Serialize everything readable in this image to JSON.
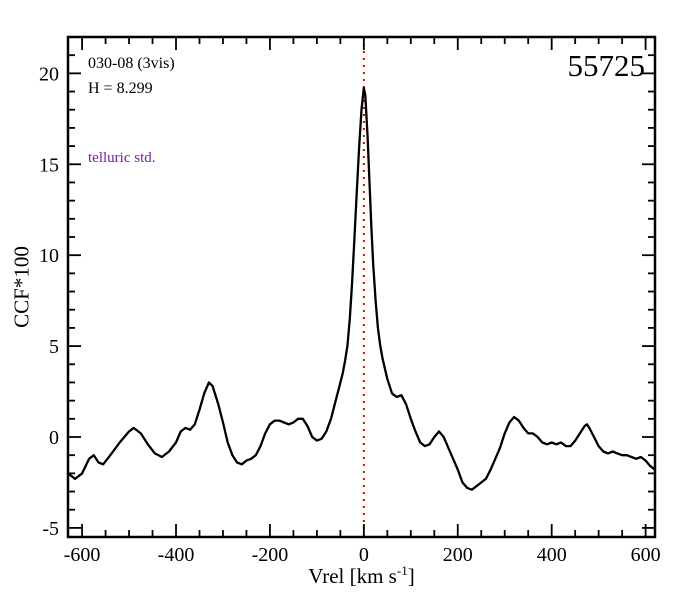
{
  "labels": {
    "obs_id": "030-08 (3vis)",
    "h_mag": "H = 8.299",
    "telluric": "telluric std.",
    "telluric_color": "#7b1fa2",
    "mjd": "55725"
  },
  "axes": {
    "ylabel": "CCF*100",
    "xlabel_prefix": "Vrel [km s",
    "xlabel_sup": "-1",
    "xlabel_suffix": "]"
  },
  "chart_data": {
    "type": "line",
    "title": "",
    "xlabel": "Vrel [km s^-1]",
    "ylabel": "CCF*100",
    "xlim": [
      -630,
      620
    ],
    "ylim": [
      -5.5,
      22
    ],
    "xticks": [
      -600,
      -400,
      -200,
      0,
      200,
      400,
      600
    ],
    "yticks": [
      -5,
      0,
      5,
      10,
      15,
      20
    ],
    "x_minor_step": 50,
    "y_minor_step": 1,
    "grid": false,
    "refline": {
      "x": 0,
      "color": "#dd0000",
      "style": "dotted"
    },
    "series": [
      {
        "name": "CCF",
        "color": "#000000",
        "x": [
          -630,
          -615,
          -600,
          -585,
          -575,
          -565,
          -555,
          -540,
          -520,
          -500,
          -490,
          -475,
          -460,
          -445,
          -430,
          -415,
          -400,
          -390,
          -380,
          -370,
          -360,
          -350,
          -340,
          -330,
          -322,
          -310,
          -300,
          -290,
          -280,
          -270,
          -260,
          -250,
          -240,
          -230,
          -220,
          -210,
          -200,
          -190,
          -180,
          -170,
          -160,
          -150,
          -140,
          -130,
          -120,
          -110,
          -100,
          -90,
          -80,
          -70,
          -60,
          -50,
          -45,
          -40,
          -35,
          -30,
          -25,
          -20,
          -15,
          -10,
          -5,
          0,
          3,
          8,
          12,
          16,
          20,
          25,
          30,
          35,
          40,
          50,
          60,
          70,
          80,
          90,
          100,
          110,
          120,
          130,
          140,
          150,
          160,
          170,
          180,
          190,
          200,
          210,
          220,
          230,
          240,
          250,
          260,
          270,
          280,
          290,
          300,
          310,
          320,
          330,
          340,
          350,
          360,
          370,
          380,
          390,
          400,
          410,
          420,
          430,
          440,
          450,
          460,
          470,
          475,
          480,
          490,
          500,
          510,
          520,
          530,
          540,
          550,
          560,
          570,
          580,
          590,
          600,
          610,
          620
        ],
        "y": [
          -2.0,
          -2.3,
          -2.0,
          -1.2,
          -1.0,
          -1.4,
          -1.5,
          -1.0,
          -0.3,
          0.3,
          0.5,
          0.2,
          -0.4,
          -0.9,
          -1.1,
          -0.8,
          -0.3,
          0.3,
          0.5,
          0.4,
          0.7,
          1.5,
          2.4,
          3.0,
          2.8,
          1.8,
          0.8,
          -0.3,
          -1.0,
          -1.4,
          -1.5,
          -1.3,
          -1.2,
          -1.0,
          -0.5,
          0.2,
          0.7,
          0.9,
          0.9,
          0.8,
          0.7,
          0.8,
          1.0,
          1.0,
          0.6,
          0.0,
          -0.2,
          -0.1,
          0.3,
          1.0,
          2.0,
          3.0,
          3.5,
          4.2,
          5.0,
          6.5,
          8.5,
          11.0,
          13.5,
          16.0,
          18.0,
          19.2,
          18.8,
          16.5,
          14.0,
          11.5,
          9.5,
          7.5,
          6.0,
          5.0,
          4.3,
          3.2,
          2.4,
          2.2,
          2.3,
          1.8,
          1.0,
          0.3,
          -0.3,
          -0.5,
          -0.4,
          0.0,
          0.3,
          0.0,
          -0.6,
          -1.2,
          -1.8,
          -2.5,
          -2.8,
          -2.9,
          -2.7,
          -2.5,
          -2.3,
          -1.8,
          -1.2,
          -0.6,
          0.2,
          0.8,
          1.1,
          0.9,
          0.5,
          0.2,
          0.2,
          0.0,
          -0.3,
          -0.4,
          -0.3,
          -0.4,
          -0.3,
          -0.5,
          -0.5,
          -0.2,
          0.2,
          0.6,
          0.7,
          0.5,
          0.0,
          -0.5,
          -0.8,
          -0.9,
          -0.8,
          -0.9,
          -1.0,
          -1.0,
          -1.1,
          -1.2,
          -1.1,
          -1.3,
          -1.6,
          -1.8
        ]
      }
    ]
  }
}
